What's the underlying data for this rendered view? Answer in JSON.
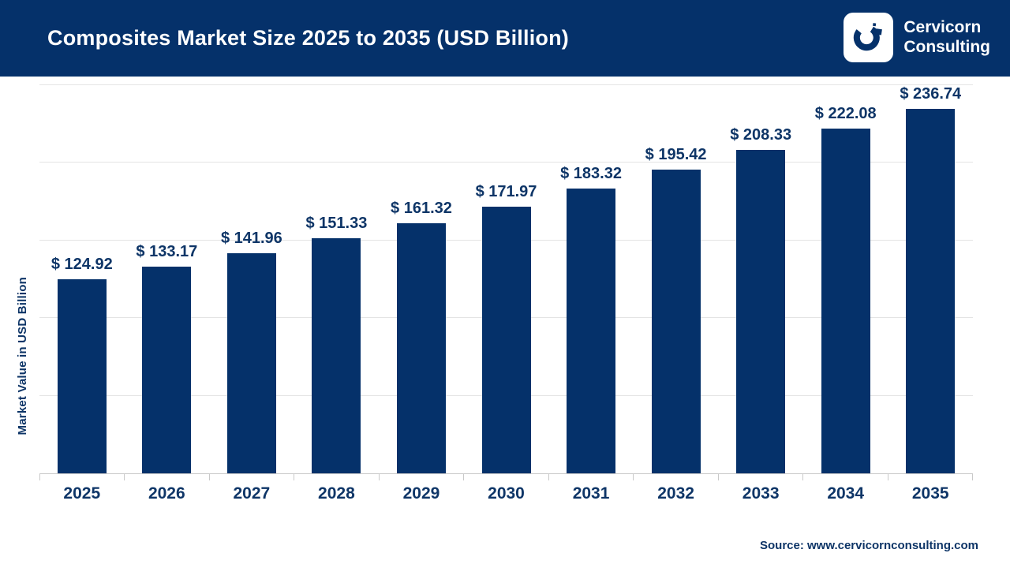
{
  "header": {
    "title": "Composites Market Size 2025 to 2035 (USD Billion)",
    "logo": {
      "line1": "Cervicorn",
      "line2": "Consulting"
    }
  },
  "chart_data": {
    "type": "bar",
    "title": "Composites Market Size 2025 to 2035 (USD Billion)",
    "categories": [
      "2025",
      "2026",
      "2027",
      "2028",
      "2029",
      "2030",
      "2031",
      "2032",
      "2033",
      "2034",
      "2035"
    ],
    "values": [
      124.92,
      133.17,
      141.96,
      151.33,
      161.32,
      171.97,
      183.32,
      195.42,
      208.33,
      222.08,
      236.74
    ],
    "data_labels": [
      "$ 124.92",
      "$ 133.17",
      "$ 141.96",
      "$ 151.33",
      "$ 161.32",
      "$ 171.97",
      "$ 183.32",
      "$ 195.42",
      "$ 208.33",
      "$ 222.08",
      "$ 236.74"
    ],
    "xlabel": "",
    "ylabel": "Market Value in USD Billion",
    "ylim": [
      0,
      250
    ],
    "gridline_step": 50,
    "grid": true,
    "legend": "none",
    "bar_color": "#05316A",
    "label_color": "#0E3567"
  },
  "footer": {
    "source": "Source: www.cervicornconsulting.com"
  },
  "colors": {
    "navy": "#05316A",
    "text_navy": "#0E3567",
    "gridline": "#E4E4E4"
  }
}
